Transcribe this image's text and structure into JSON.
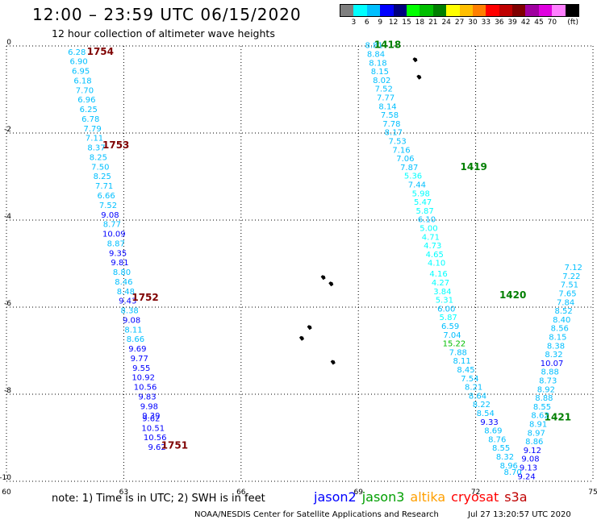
{
  "header": {
    "title": "12:00 – 23:59 UTC 06/15/2020",
    "subtitle": "12 hour collection of altimeter wave heights"
  },
  "legend": {
    "units": "(ft)",
    "bins": [
      {
        "label": "",
        "color": "#7f7f7f"
      },
      {
        "label": "3",
        "color": "#00ffff"
      },
      {
        "label": "6",
        "color": "#00bfff"
      },
      {
        "label": "9",
        "color": "#0000ff"
      },
      {
        "label": "12",
        "color": "#00007f"
      },
      {
        "label": "15",
        "color": "#00ff00"
      },
      {
        "label": "18",
        "color": "#00bf00"
      },
      {
        "label": "21",
        "color": "#007f00"
      },
      {
        "label": "24",
        "color": "#ffff00"
      },
      {
        "label": "27",
        "color": "#ffbf00"
      },
      {
        "label": "30",
        "color": "#ff7f00"
      },
      {
        "label": "33",
        "color": "#ff0000"
      },
      {
        "label": "36",
        "color": "#bf0000"
      },
      {
        "label": "39",
        "color": "#7f0000"
      },
      {
        "label": "42",
        "color": "#9f009f"
      },
      {
        "label": "45",
        "color": "#df00df"
      },
      {
        "label": "70",
        "color": "#ff7fff"
      },
      {
        "label": "",
        "color": "#000000"
      }
    ]
  },
  "axes": {
    "x_ticks": [
      "60",
      "63",
      "66",
      "69",
      "72",
      "75"
    ],
    "y_ticks": [
      "0",
      "-2",
      "-4",
      "-6",
      "-8",
      "-10"
    ]
  },
  "tracks": [
    {
      "name": "west",
      "time_labels": [
        {
          "text": "1754",
          "lon": 62.4,
          "lat": -0.2
        },
        {
          "text": "1753",
          "lon": 62.8,
          "lat": -2.35
        },
        {
          "text": "1752",
          "lon": 63.55,
          "lat": -5.85
        },
        {
          "text": "1751",
          "lon": 64.3,
          "lat": -9.25
        }
      ],
      "label_color": "#7f0000",
      "points": [
        {
          "lon": 61.8,
          "lat": -0.2,
          "value": "6.28",
          "color": "#00bfff"
        },
        {
          "lon": 61.85,
          "lat": -0.42,
          "value": "6.90",
          "color": "#00bfff"
        },
        {
          "lon": 61.9,
          "lat": -0.64,
          "value": "6.95",
          "color": "#00bfff"
        },
        {
          "lon": 61.95,
          "lat": -0.86,
          "value": "6.18",
          "color": "#00bfff"
        },
        {
          "lon": 62.0,
          "lat": -1.08,
          "value": "7.70",
          "color": "#00bfff"
        },
        {
          "lon": 62.05,
          "lat": -1.3,
          "value": "6.96",
          "color": "#00bfff"
        },
        {
          "lon": 62.1,
          "lat": -1.52,
          "value": "6.25",
          "color": "#00bfff"
        },
        {
          "lon": 62.15,
          "lat": -1.74,
          "value": "6.78",
          "color": "#00bfff"
        },
        {
          "lon": 62.2,
          "lat": -1.96,
          "value": "7.79",
          "color": "#00bfff"
        },
        {
          "lon": 62.25,
          "lat": -2.18,
          "value": "7.11",
          "color": "#00bfff"
        },
        {
          "lon": 62.3,
          "lat": -2.4,
          "value": "8.37",
          "color": "#00bfff"
        },
        {
          "lon": 62.35,
          "lat": -2.62,
          "value": "8.25",
          "color": "#00bfff"
        },
        {
          "lon": 62.4,
          "lat": -2.84,
          "value": "7.50",
          "color": "#00bfff"
        },
        {
          "lon": 62.45,
          "lat": -3.06,
          "value": "8.25",
          "color": "#00bfff"
        },
        {
          "lon": 62.5,
          "lat": -3.28,
          "value": "7.71",
          "color": "#00bfff"
        },
        {
          "lon": 62.55,
          "lat": -3.5,
          "value": "6.66",
          "color": "#00bfff"
        },
        {
          "lon": 62.6,
          "lat": -3.72,
          "value": "7.52",
          "color": "#00bfff"
        },
        {
          "lon": 62.65,
          "lat": -3.94,
          "value": "9.08",
          "color": "#0000ff"
        },
        {
          "lon": 62.7,
          "lat": -4.16,
          "value": "8.77",
          "color": "#00bfff"
        },
        {
          "lon": 62.75,
          "lat": -4.38,
          "value": "10.09",
          "color": "#0000ff"
        },
        {
          "lon": 62.8,
          "lat": -4.6,
          "value": "8.87",
          "color": "#00bfff"
        },
        {
          "lon": 62.85,
          "lat": -4.82,
          "value": "9.35",
          "color": "#0000ff"
        },
        {
          "lon": 62.9,
          "lat": -5.04,
          "value": "9.81",
          "color": "#0000ff"
        },
        {
          "lon": 62.95,
          "lat": -5.26,
          "value": "8.80",
          "color": "#00bfff"
        },
        {
          "lon": 63.0,
          "lat": -5.48,
          "value": "8.46",
          "color": "#00bfff"
        },
        {
          "lon": 63.05,
          "lat": -5.7,
          "value": "8.48",
          "color": "#00bfff"
        },
        {
          "lon": 63.1,
          "lat": -5.92,
          "value": "9.43",
          "color": "#0000ff"
        },
        {
          "lon": 63.15,
          "lat": -6.14,
          "value": "8.38",
          "color": "#00bfff"
        },
        {
          "lon": 63.2,
          "lat": -6.36,
          "value": "9.08",
          "color": "#0000ff"
        },
        {
          "lon": 63.25,
          "lat": -6.58,
          "value": "8.11",
          "color": "#00bfff"
        },
        {
          "lon": 63.3,
          "lat": -6.8,
          "value": "8.66",
          "color": "#00bfff"
        },
        {
          "lon": 63.35,
          "lat": -7.02,
          "value": "9.69",
          "color": "#0000ff"
        },
        {
          "lon": 63.4,
          "lat": -7.24,
          "value": "9.77",
          "color": "#0000ff"
        },
        {
          "lon": 63.45,
          "lat": -7.46,
          "value": "9.55",
          "color": "#0000ff"
        },
        {
          "lon": 63.5,
          "lat": -7.68,
          "value": "10.92",
          "color": "#0000ff"
        },
        {
          "lon": 63.55,
          "lat": -7.9,
          "value": "10.56",
          "color": "#0000ff"
        },
        {
          "lon": 63.6,
          "lat": -8.12,
          "value": "9.83",
          "color": "#0000ff"
        },
        {
          "lon": 63.65,
          "lat": -8.34,
          "value": "9.98",
          "color": "#0000ff"
        },
        {
          "lon": 63.7,
          "lat": -8.56,
          "value": "9.39",
          "color": "#0000ff"
        },
        {
          "lon": 63.7,
          "lat": -8.62,
          "value": "9.62",
          "color": "#0000ff"
        },
        {
          "lon": 63.75,
          "lat": -8.84,
          "value": "10.51",
          "color": "#0000ff"
        },
        {
          "lon": 63.8,
          "lat": -9.06,
          "value": "10.56",
          "color": "#0000ff"
        },
        {
          "lon": 63.85,
          "lat": -9.28,
          "value": "9.62",
          "color": "#0000ff"
        }
      ]
    },
    {
      "name": "middle",
      "time_labels": [
        {
          "text": "1418",
          "lon": 69.75,
          "lat": -0.05
        },
        {
          "text": "1419",
          "lon": 71.95,
          "lat": -2.85
        },
        {
          "text": "1420",
          "lon": 72.95,
          "lat": -5.8
        },
        {
          "text": "1421",
          "lon": 74.1,
          "lat": -8.6
        }
      ],
      "label_color": "#007f00",
      "points": [
        {
          "lon": 69.4,
          "lat": -0.05,
          "value": "8.81",
          "color": "#00bfff"
        },
        {
          "lon": 69.45,
          "lat": -0.25,
          "value": "8.84",
          "color": "#00bfff"
        },
        {
          "lon": 69.5,
          "lat": -0.45,
          "value": "8.18",
          "color": "#00bfff"
        },
        {
          "lon": 69.55,
          "lat": -0.65,
          "value": "8.15",
          "color": "#00bfff"
        },
        {
          "lon": 69.6,
          "lat": -0.85,
          "value": "8.02",
          "color": "#00bfff"
        },
        {
          "lon": 69.65,
          "lat": -1.05,
          "value": "7.52",
          "color": "#00bfff"
        },
        {
          "lon": 69.7,
          "lat": -1.25,
          "value": "7.77",
          "color": "#00bfff"
        },
        {
          "lon": 69.75,
          "lat": -1.45,
          "value": "8.14",
          "color": "#00bfff"
        },
        {
          "lon": 69.8,
          "lat": -1.65,
          "value": "7.58",
          "color": "#00bfff"
        },
        {
          "lon": 69.85,
          "lat": -1.85,
          "value": "7.78",
          "color": "#00bfff"
        },
        {
          "lon": 69.9,
          "lat": -2.05,
          "value": "8.17",
          "color": "#00bfff"
        },
        {
          "lon": 70.0,
          "lat": -2.25,
          "value": "7.53",
          "color": "#00bfff"
        },
        {
          "lon": 70.1,
          "lat": -2.45,
          "value": "7.16",
          "color": "#00bfff"
        },
        {
          "lon": 70.2,
          "lat": -2.65,
          "value": "7.06",
          "color": "#00bfff"
        },
        {
          "lon": 70.3,
          "lat": -2.85,
          "value": "7.87",
          "color": "#00bfff"
        },
        {
          "lon": 70.4,
          "lat": -3.05,
          "value": "5.36",
          "color": "#00ffff"
        },
        {
          "lon": 70.5,
          "lat": -3.25,
          "value": "7.44",
          "color": "#00bfff"
        },
        {
          "lon": 70.6,
          "lat": -3.45,
          "value": "5.98",
          "color": "#00ffff"
        },
        {
          "lon": 70.65,
          "lat": -3.65,
          "value": "5.47",
          "color": "#00ffff"
        },
        {
          "lon": 70.7,
          "lat": -3.85,
          "value": "5.87",
          "color": "#00ffff"
        },
        {
          "lon": 70.75,
          "lat": -4.05,
          "value": "6.10",
          "color": "#00bfff"
        },
        {
          "lon": 70.8,
          "lat": -4.25,
          "value": "5.00",
          "color": "#00ffff"
        },
        {
          "lon": 70.85,
          "lat": -4.45,
          "value": "4.71",
          "color": "#00ffff"
        },
        {
          "lon": 70.9,
          "lat": -4.65,
          "value": "4.73",
          "color": "#00ffff"
        },
        {
          "lon": 70.95,
          "lat": -4.85,
          "value": "4.65",
          "color": "#00ffff"
        },
        {
          "lon": 71.0,
          "lat": -5.05,
          "value": "4.10",
          "color": "#00ffff"
        },
        {
          "lon": 71.05,
          "lat": -5.3,
          "value": "4.16",
          "color": "#00ffff"
        },
        {
          "lon": 71.1,
          "lat": -5.5,
          "value": "4.27",
          "color": "#00ffff"
        },
        {
          "lon": 71.15,
          "lat": -5.7,
          "value": "3.84",
          "color": "#00ffff"
        },
        {
          "lon": 71.2,
          "lat": -5.9,
          "value": "5.31",
          "color": "#00ffff"
        },
        {
          "lon": 71.25,
          "lat": -6.1,
          "value": "6.00",
          "color": "#00bfff"
        },
        {
          "lon": 71.3,
          "lat": -6.3,
          "value": "5.87",
          "color": "#00ffff"
        },
        {
          "lon": 71.35,
          "lat": -6.5,
          "value": "6.59",
          "color": "#00bfff"
        },
        {
          "lon": 71.4,
          "lat": -6.7,
          "value": "7.04",
          "color": "#00bfff"
        },
        {
          "lon": 71.45,
          "lat": -6.9,
          "value": "15.22",
          "color": "#00bf00"
        },
        {
          "lon": 71.55,
          "lat": -7.1,
          "value": "7.88",
          "color": "#00bfff"
        },
        {
          "lon": 71.65,
          "lat": -7.3,
          "value": "8.11",
          "color": "#00bfff"
        },
        {
          "lon": 71.75,
          "lat": -7.5,
          "value": "8.45",
          "color": "#00bfff"
        },
        {
          "lon": 71.85,
          "lat": -7.7,
          "value": "7.54",
          "color": "#00bfff"
        },
        {
          "lon": 71.95,
          "lat": -7.9,
          "value": "8.21",
          "color": "#00bfff"
        },
        {
          "lon": 72.05,
          "lat": -8.1,
          "value": "8.64",
          "color": "#00bfff"
        },
        {
          "lon": 72.15,
          "lat": -8.3,
          "value": "8.22",
          "color": "#00bfff"
        },
        {
          "lon": 72.25,
          "lat": -8.5,
          "value": "8.54",
          "color": "#00bfff"
        },
        {
          "lon": 72.35,
          "lat": -8.7,
          "value": "9.33",
          "color": "#0000ff"
        },
        {
          "lon": 72.45,
          "lat": -8.9,
          "value": "8.69",
          "color": "#00bfff"
        },
        {
          "lon": 72.55,
          "lat": -9.1,
          "value": "8.76",
          "color": "#00bfff"
        },
        {
          "lon": 72.65,
          "lat": -9.3,
          "value": "8.55",
          "color": "#00bfff"
        },
        {
          "lon": 72.75,
          "lat": -9.5,
          "value": "8.32",
          "color": "#00bfff"
        },
        {
          "lon": 72.85,
          "lat": -9.7,
          "value": "8.96",
          "color": "#00bfff"
        },
        {
          "lon": 72.95,
          "lat": -9.85,
          "value": "8.70",
          "color": "#00bfff"
        }
      ]
    },
    {
      "name": "east",
      "time_labels": [],
      "label_color": "#007f00",
      "points": [
        {
          "lon": 73.3,
          "lat": -9.95,
          "value": "9.24",
          "color": "#0000ff"
        },
        {
          "lon": 73.35,
          "lat": -9.75,
          "value": "9.13",
          "color": "#0000ff"
        },
        {
          "lon": 73.4,
          "lat": -9.55,
          "value": "9.08",
          "color": "#0000ff"
        },
        {
          "lon": 73.45,
          "lat": -9.35,
          "value": "9.12",
          "color": "#0000ff"
        },
        {
          "lon": 73.5,
          "lat": -9.15,
          "value": "8.86",
          "color": "#00bfff"
        },
        {
          "lon": 73.55,
          "lat": -8.95,
          "value": "8.97",
          "color": "#00bfff"
        },
        {
          "lon": 73.6,
          "lat": -8.75,
          "value": "8.91",
          "color": "#00bfff"
        },
        {
          "lon": 73.65,
          "lat": -8.55,
          "value": "8.62",
          "color": "#00bfff"
        },
        {
          "lon": 73.7,
          "lat": -8.35,
          "value": "8.55",
          "color": "#00bfff"
        },
        {
          "lon": 73.75,
          "lat": -8.15,
          "value": "8.88",
          "color": "#00bfff"
        },
        {
          "lon": 73.8,
          "lat": -7.95,
          "value": "8.92",
          "color": "#00bfff"
        },
        {
          "lon": 73.85,
          "lat": -7.75,
          "value": "8.73",
          "color": "#00bfff"
        },
        {
          "lon": 73.9,
          "lat": -7.55,
          "value": "8.88",
          "color": "#00bfff"
        },
        {
          "lon": 73.95,
          "lat": -7.35,
          "value": "10.07",
          "color": "#0000ff"
        },
        {
          "lon": 74.0,
          "lat": -7.15,
          "value": "8.32",
          "color": "#00bfff"
        },
        {
          "lon": 74.05,
          "lat": -6.95,
          "value": "8.38",
          "color": "#00bfff"
        },
        {
          "lon": 74.1,
          "lat": -6.75,
          "value": "8.15",
          "color": "#00bfff"
        },
        {
          "lon": 74.15,
          "lat": -6.55,
          "value": "8.56",
          "color": "#00bfff"
        },
        {
          "lon": 74.2,
          "lat": -6.35,
          "value": "8.40",
          "color": "#00bfff"
        },
        {
          "lon": 74.25,
          "lat": -6.15,
          "value": "8.52",
          "color": "#00bfff"
        },
        {
          "lon": 74.3,
          "lat": -5.95,
          "value": "7.84",
          "color": "#00bfff"
        },
        {
          "lon": 74.35,
          "lat": -5.75,
          "value": "7.65",
          "color": "#00bfff"
        },
        {
          "lon": 74.4,
          "lat": -5.55,
          "value": "7.51",
          "color": "#00bfff"
        },
        {
          "lon": 74.45,
          "lat": -5.35,
          "value": "7.22",
          "color": "#00bfff"
        },
        {
          "lon": 74.5,
          "lat": -5.15,
          "value": "7.12",
          "color": "#00bfff"
        }
      ]
    }
  ],
  "islands": [
    {
      "lon": 70.55,
      "lat": -0.7
    },
    {
      "lon": 70.45,
      "lat": -0.3
    },
    {
      "lon": 68.1,
      "lat": -5.3
    },
    {
      "lon": 68.3,
      "lat": -5.45
    },
    {
      "lon": 67.75,
      "lat": -6.45
    },
    {
      "lon": 67.55,
      "lat": -6.7
    },
    {
      "lon": 68.35,
      "lat": -7.25
    }
  ],
  "footer": {
    "note": "note:  1) Time is in UTC;  2) SWH is in feet",
    "credit": "NOAA/NESDIS Center for Satellite Applications and Research",
    "date": "Jul 27 13:20:57 UTC 2020",
    "satellites": [
      {
        "name": "jason2",
        "color": "#0000ff"
      },
      {
        "name": "jason3",
        "color": "#009f00"
      },
      {
        "name": "altika",
        "color": "#ff9f00"
      },
      {
        "name": "cryosat",
        "color": "#ff0000"
      },
      {
        "name": "s3a",
        "color": "#bf0000"
      }
    ]
  }
}
